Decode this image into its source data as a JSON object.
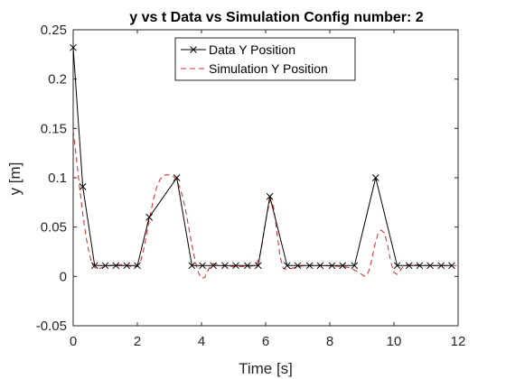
{
  "chart_data": {
    "type": "line",
    "title": "y vs t Data vs Simulation Config number: 2",
    "xlabel": "Time [s]",
    "ylabel": "y [m]",
    "xlim": [
      0,
      12
    ],
    "ylim": [
      -0.05,
      0.25
    ],
    "xticks": [
      0,
      2,
      4,
      6,
      8,
      10,
      12
    ],
    "xtick_labels": [
      "0",
      "2",
      "4",
      "6",
      "8",
      "10",
      "12"
    ],
    "yticks": [
      -0.05,
      0,
      0.05,
      0.1,
      0.15,
      0.2,
      0.25
    ],
    "ytick_labels": [
      "-0.05",
      "0",
      "0.05",
      "0.1",
      "0.15",
      "0.2",
      "0.25"
    ],
    "grid": false,
    "legend_position": "top-center",
    "series": [
      {
        "name": "Data Y Position",
        "style": "solid-x-markers",
        "color": "#000000",
        "x": [
          0,
          0.3,
          0.67,
          1.0,
          1.33,
          1.67,
          2.0,
          2.37,
          3.23,
          3.7,
          4.03,
          4.37,
          4.73,
          5.07,
          5.43,
          5.77,
          6.13,
          6.67,
          7.0,
          7.37,
          7.7,
          8.07,
          8.4,
          8.77,
          9.43,
          10.1,
          10.47,
          10.8,
          11.13,
          11.47,
          11.8
        ],
        "y": [
          0.232,
          0.091,
          0.011,
          0.011,
          0.011,
          0.011,
          0.011,
          0.06,
          0.1,
          0.011,
          0.011,
          0.011,
          0.011,
          0.011,
          0.011,
          0.011,
          0.081,
          0.011,
          0.011,
          0.011,
          0.011,
          0.011,
          0.011,
          0.011,
          0.1,
          0.011,
          0.011,
          0.011,
          0.011,
          0.011,
          0.011
        ]
      },
      {
        "name": "Simulation Y Position",
        "style": "dashed",
        "color": "#d62728",
        "x": [
          0,
          0.1,
          0.2,
          0.3,
          0.4,
          0.5,
          0.6,
          0.7,
          0.8,
          1.0,
          1.3,
          1.6,
          1.8,
          2.0,
          2.1,
          2.2,
          2.3,
          2.4,
          2.5,
          2.6,
          2.7,
          2.8,
          2.9,
          3.0,
          3.1,
          3.2,
          3.3,
          3.4,
          3.5,
          3.6,
          3.7,
          3.8,
          3.9,
          4.0,
          4.1,
          4.2,
          4.3,
          4.4,
          4.6,
          5.0,
          5.4,
          5.7,
          5.85,
          5.95,
          6.05,
          6.15,
          6.25,
          6.35,
          6.45,
          6.55,
          6.7,
          6.9,
          7.2,
          7.8,
          8.4,
          8.6,
          8.8,
          9.0,
          9.1,
          9.2,
          9.3,
          9.4,
          9.5,
          9.6,
          9.7,
          9.8,
          9.9,
          10.0,
          10.1,
          10.2,
          10.3,
          10.5,
          11.0,
          12.0
        ],
        "y": [
          0.148,
          0.12,
          0.09,
          0.063,
          0.04,
          0.023,
          0.012,
          0.008,
          0.008,
          0.01,
          0.012,
          0.012,
          0.01,
          0.01,
          0.015,
          0.028,
          0.045,
          0.062,
          0.078,
          0.09,
          0.098,
          0.102,
          0.103,
          0.103,
          0.102,
          0.099,
          0.092,
          0.082,
          0.068,
          0.05,
          0.032,
          0.016,
          0.004,
          -0.002,
          -0.001,
          0.006,
          0.012,
          0.013,
          0.011,
          0.01,
          0.01,
          0.011,
          0.025,
          0.045,
          0.065,
          0.078,
          0.07,
          0.045,
          0.02,
          0.008,
          0.007,
          0.009,
          0.011,
          0.011,
          0.01,
          0.009,
          0.006,
          0.002,
          0.0,
          0.004,
          0.016,
          0.032,
          0.043,
          0.047,
          0.044,
          0.032,
          0.015,
          0.004,
          0.002,
          0.006,
          0.011,
          0.012,
          0.011,
          0.011
        ]
      }
    ]
  },
  "colors": {
    "data": "#000000",
    "simulation": "#d62728",
    "axes": "#262626"
  }
}
